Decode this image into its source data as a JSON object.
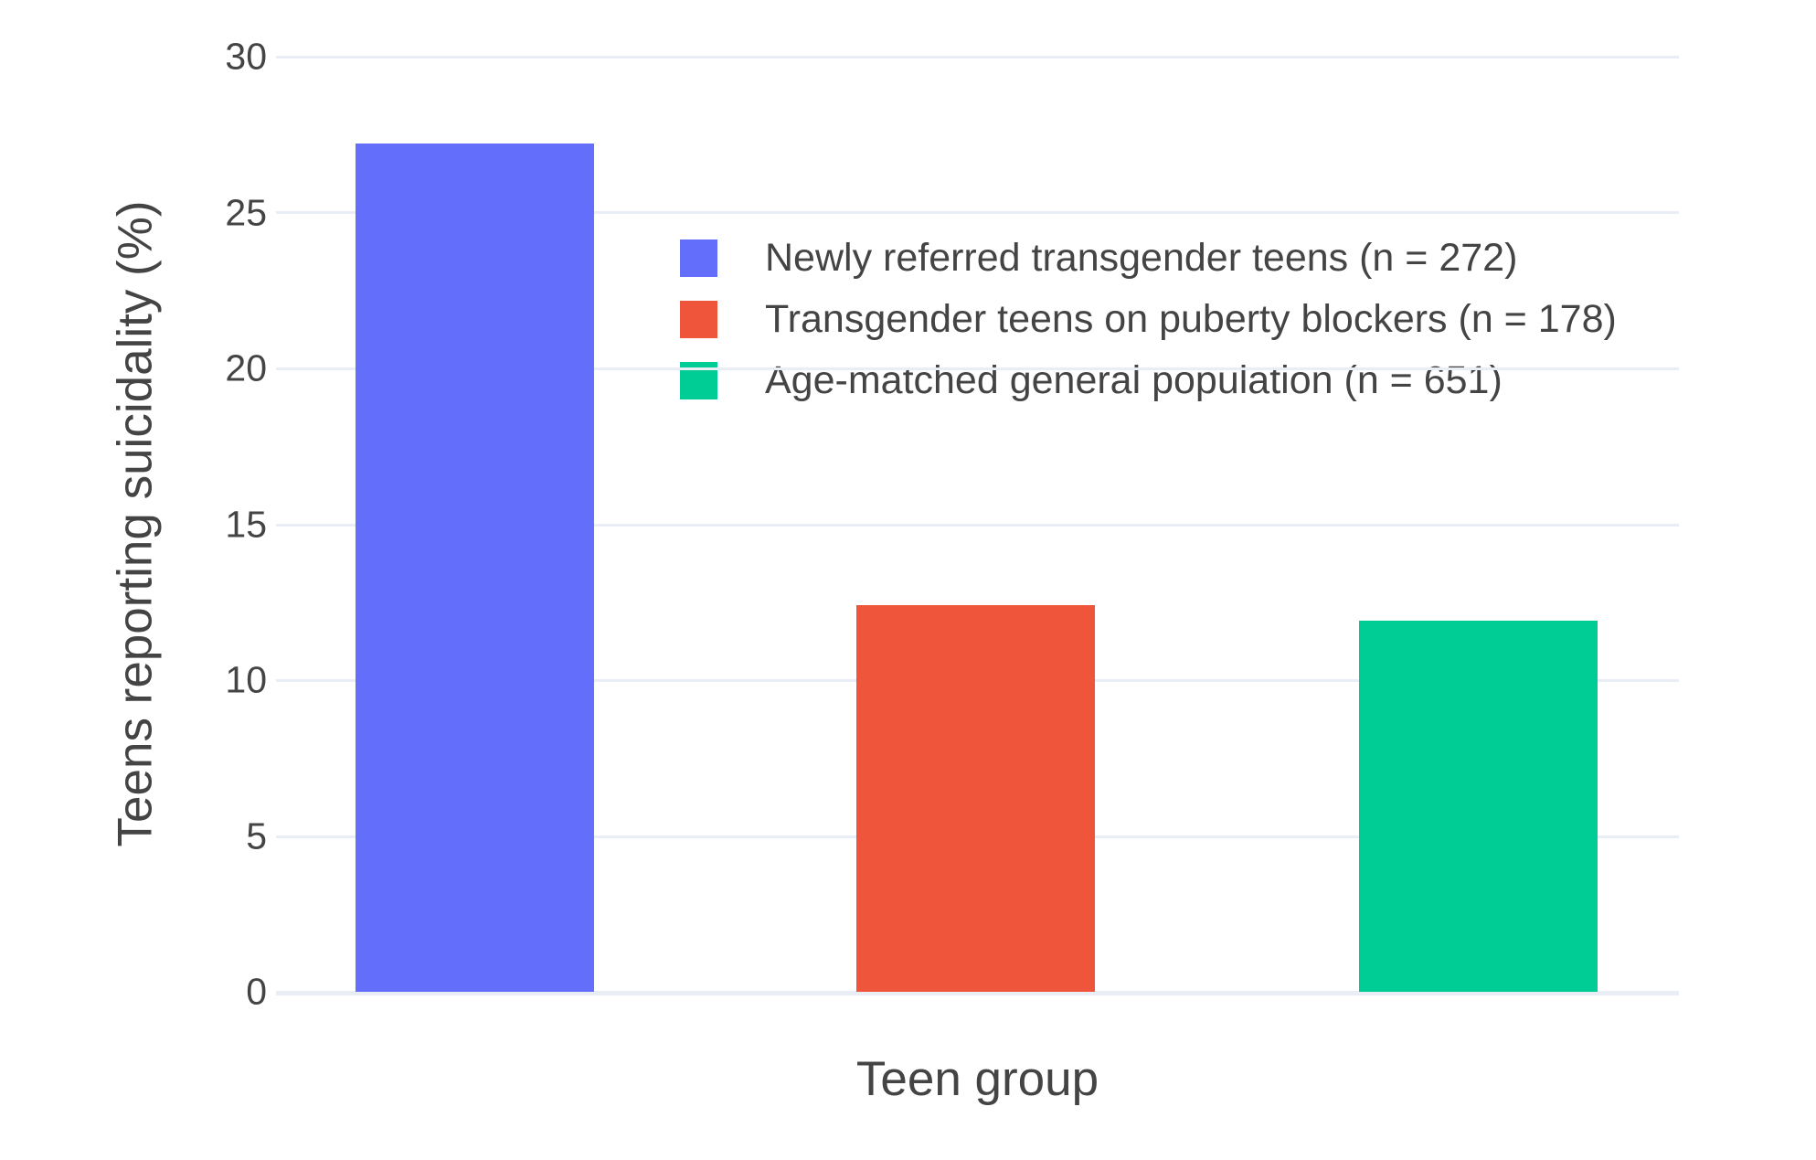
{
  "chart_data": {
    "type": "bar",
    "title": "",
    "xlabel": "Teen group",
    "ylabel": "Teens reporting suicidality (%)",
    "categories": [
      "Newly referred transgender teens (n = 272)",
      "Transgender teens on puberty blockers (n = 178)",
      "Age-matched general population (n = 651)"
    ],
    "values": [
      27.2,
      12.4,
      11.9
    ],
    "colors": [
      "#636EFA",
      "#EF553B",
      "#00CC96"
    ],
    "ylim": [
      0,
      30
    ],
    "yticks": [
      0,
      5,
      10,
      15,
      20,
      25,
      30
    ],
    "grid": true,
    "background": "#ffffff",
    "gridline_color": "#E8EDF6",
    "text_color": "#444444",
    "legend_position": "inside top-left of plot",
    "legend": [
      {
        "label": "Newly referred transgender teens (n = 272)",
        "color": "#636EFA"
      },
      {
        "label": "Transgender teens on puberty blockers (n = 178)",
        "color": "#EF553B"
      },
      {
        "label": "Age-matched general population (n = 651)",
        "color": "#00CC96"
      }
    ]
  },
  "axes": {
    "x_title": "Teen group",
    "y_title": "Teens reporting suicidality (%)"
  }
}
